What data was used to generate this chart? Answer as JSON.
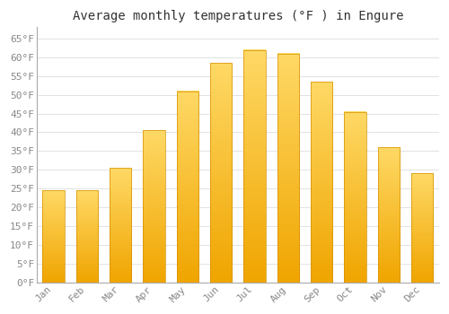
{
  "title": "Average monthly temperatures (°F ) in Engure",
  "months": [
    "Jan",
    "Feb",
    "Mar",
    "Apr",
    "May",
    "Jun",
    "Jul",
    "Aug",
    "Sep",
    "Oct",
    "Nov",
    "Dec"
  ],
  "values": [
    24.5,
    24.5,
    30.5,
    40.5,
    51,
    58.5,
    62,
    61,
    53.5,
    45.5,
    36,
    29
  ],
  "bar_color_top": "#FFD966",
  "bar_color_bottom": "#F0A500",
  "bar_edge_color": "#D49000",
  "background_color": "#FFFFFF",
  "grid_color": "#DDDDDD",
  "ylim": [
    0,
    68
  ],
  "yticks": [
    0,
    5,
    10,
    15,
    20,
    25,
    30,
    35,
    40,
    45,
    50,
    55,
    60,
    65
  ],
  "ytick_labels": [
    "0°F",
    "5°F",
    "10°F",
    "15°F",
    "20°F",
    "25°F",
    "30°F",
    "35°F",
    "40°F",
    "45°F",
    "50°F",
    "55°F",
    "60°F",
    "65°F"
  ],
  "title_fontsize": 10,
  "tick_fontsize": 8,
  "font_family": "monospace",
  "tick_color": "#888888",
  "spine_color": "#AAAAAA",
  "bar_width": 0.65
}
